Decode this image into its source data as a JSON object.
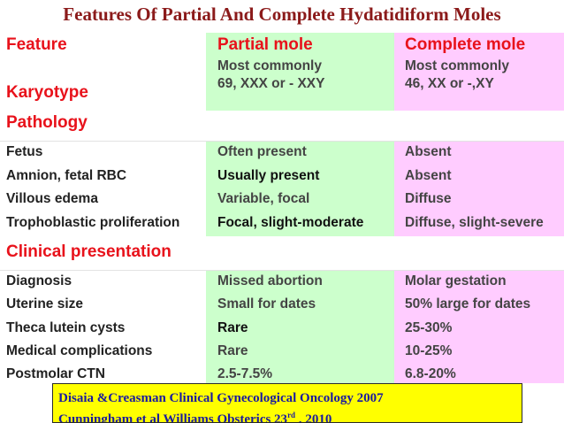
{
  "title": "Features Of Partial And Complete Hydatidiform Moles",
  "colors": {
    "partial_band": "#ccffcc",
    "complete_band": "#ffccff",
    "header_red": "#e8121b",
    "title_maroon": "#8b1a1a",
    "citation_bg": "#ffff00"
  },
  "header": {
    "feature": "Feature",
    "partial": "Partial mole",
    "complete": "Complete mole"
  },
  "karyotype": {
    "label": "Karyotype",
    "partial": [
      "Most commonly",
      "69, XXX or - XXY"
    ],
    "complete": [
      "Most commonly",
      "46, XX or -,XY"
    ]
  },
  "sections": {
    "pathology": "Pathology",
    "clinical": "Clinical presentation"
  },
  "pathology_rows": [
    {
      "label": "Fetus",
      "partial": "Often present",
      "complete": "Absent"
    },
    {
      "label": "Amnion, fetal RBC",
      "partial": "Usually present",
      "complete": "Absent"
    },
    {
      "label": "Villous edema",
      "partial": "Variable, focal",
      "complete": "Diffuse"
    },
    {
      "label": "Trophoblastic proliferation",
      "partial": "Focal, slight-moderate",
      "complete": "Diffuse, slight-severe"
    }
  ],
  "clinical_rows": [
    {
      "label": "Diagnosis",
      "partial": "Missed abortion",
      "complete": "Molar gestation"
    },
    {
      "label": "Uterine size",
      "partial": "Small for dates",
      "complete": "50% large for dates"
    },
    {
      "label": "Theca lutein cysts",
      "partial": "Rare",
      "complete": "25-30%"
    },
    {
      "label": "Medical complications",
      "partial": "Rare",
      "complete": "10-25%"
    },
    {
      "label": "Postmolar CTN",
      "partial": "2.5-7.5%",
      "complete": "6.8-20%"
    }
  ],
  "citation": {
    "line1": "Disaia &Creasman Clinical Gynecological  Oncology 2007",
    "line2_main": "Cunningham et al Williams Obsterics 23",
    "line2_sup": "rd",
    "line2_end": " , 2010"
  }
}
